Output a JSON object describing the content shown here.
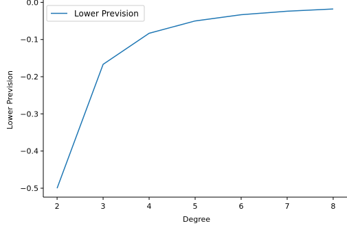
{
  "chart_data": {
    "type": "line",
    "title": "",
    "xlabel": "Degree",
    "ylabel": "Lower Prevision",
    "x": [
      2,
      3,
      4,
      5,
      6,
      7,
      8
    ],
    "series": [
      {
        "name": "Lower Prevision",
        "values": [
          -0.5,
          -0.1667,
          -0.0833,
          -0.05,
          -0.0333,
          -0.0238,
          -0.0179
        ],
        "color": "#1f77b4"
      }
    ],
    "xticks": [
      2,
      3,
      4,
      5,
      6,
      7,
      8
    ],
    "xtick_labels": [
      "2",
      "3",
      "4",
      "5",
      "6",
      "7",
      "8"
    ],
    "yticks": [
      -0.5,
      -0.4,
      -0.3,
      -0.2,
      -0.1,
      0.0
    ],
    "ytick_labels": [
      "−0.5",
      "−0.4",
      "−0.3",
      "−0.2",
      "−0.1",
      "0.0"
    ],
    "xlim": [
      1.7,
      8.3
    ],
    "ylim": [
      -0.524,
      0.0063
    ],
    "grid": false,
    "legend_position": "top-left"
  }
}
